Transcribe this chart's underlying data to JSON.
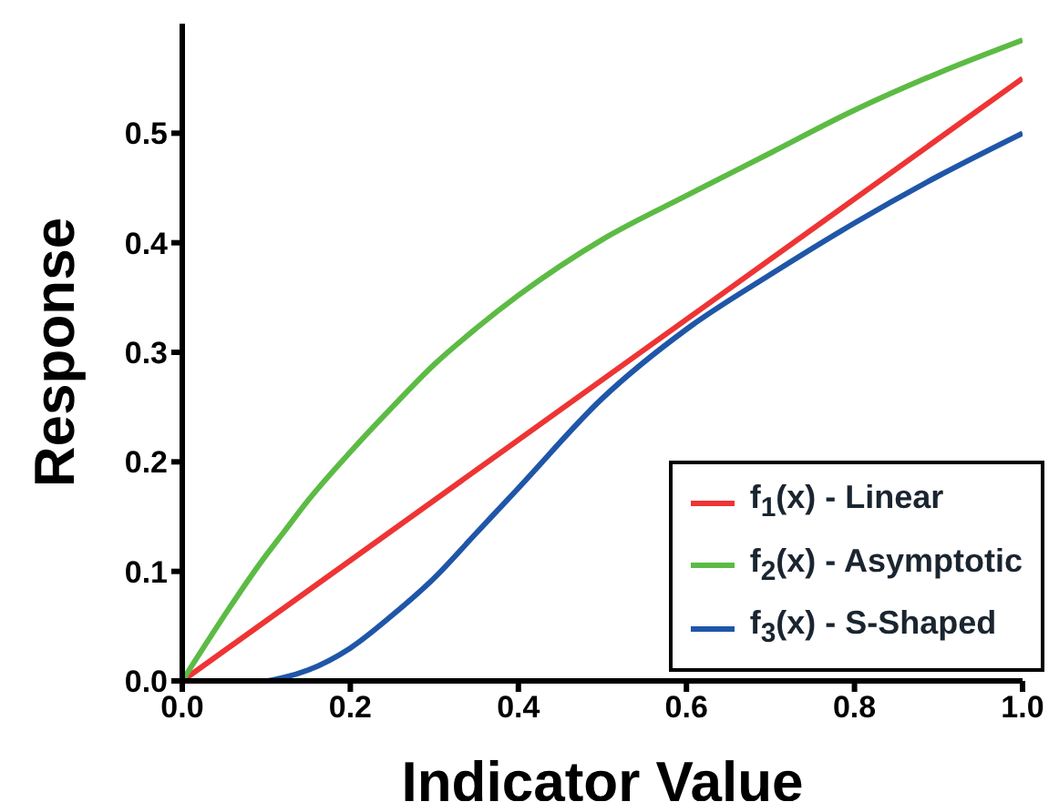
{
  "chart_data": {
    "type": "line",
    "xlabel": "Indicator Value",
    "ylabel": "Response",
    "x": [
      0,
      0.1,
      0.12,
      0.15,
      0.2,
      0.25,
      0.3,
      0.35,
      0.4,
      0.5,
      0.6,
      0.7,
      0.8,
      0.9,
      1
    ],
    "series": [
      {
        "name": "f$_{1}$(x) - Linear",
        "color": "#ee3434",
        "x": [
          0,
          1
        ],
        "values": [
          0,
          0.55
        ]
      },
      {
        "name": "f$_{2}$(x) - Asymptotic",
        "color": "#5cbb44",
        "values": [
          0,
          0.115,
          0.135,
          0.165,
          0.209,
          0.25,
          0.289,
          0.322,
          0.352,
          0.403,
          0.443,
          0.482,
          0.521,
          0.555,
          0.585
        ]
      },
      {
        "name": "f$_{3}$(x) - S-Shaped",
        "color": "#1f56a8",
        "values": [
          0,
          0,
          0.003,
          0.01,
          0.03,
          0.06,
          0.094,
          0.135,
          0.176,
          0.258,
          0.321,
          0.371,
          0.418,
          0.461,
          0.5
        ]
      }
    ],
    "xlim": [
      0,
      1
    ],
    "ylim": [
      0,
      0.6
    ],
    "xticks": [
      {
        "value": 0,
        "label": "0.0"
      },
      0.2,
      0.4,
      0.6,
      0.8,
      {
        "value": 1,
        "label": "1.0"
      }
    ],
    "yticks": [
      {
        "value": 0,
        "label": "0.0"
      },
      0.1,
      0.2,
      0.3,
      0.4,
      0.5
    ],
    "grid": false,
    "legend": "bottom right",
    "marker": "none",
    "line_style": "solid"
  }
}
